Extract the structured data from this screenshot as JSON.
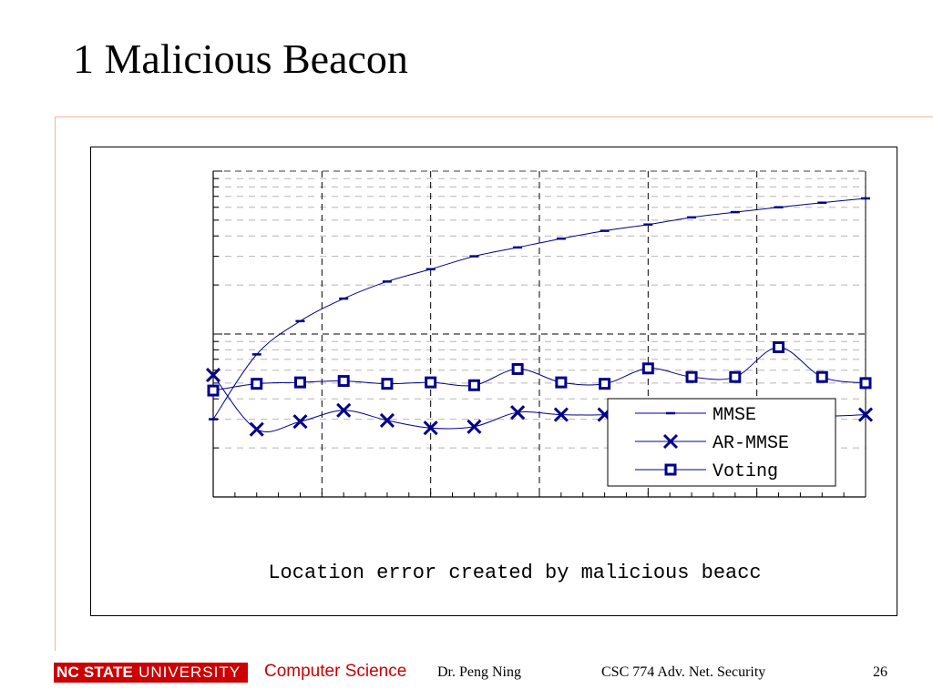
{
  "slide": {
    "title": "1 Malicious Beacon",
    "footer": {
      "logo_bold": "NC STATE",
      "logo_light": "UNIVERSITY",
      "department": "Computer Science",
      "author": "Dr. Peng Ning",
      "course": "CSC 774 Adv. Net. Security",
      "page": "26"
    },
    "colors": {
      "accent_line": "#f2b49a",
      "brand_red": "#cc0000",
      "series": "#00008b"
    }
  },
  "chart_data": {
    "type": "line",
    "title": "",
    "caption": "Location error created by malicious beacc",
    "xlabel": "",
    "ylabel": "",
    "y_scale": "log",
    "grid": true,
    "legend_position": "bottom-right",
    "x": [
      0,
      1,
      2,
      3,
      4,
      5,
      6,
      7,
      8,
      9,
      10,
      11,
      12,
      13,
      14,
      15
    ],
    "xlim": [
      0,
      15
    ],
    "ylim": [
      1,
      100
    ],
    "series": [
      {
        "name": "MMSE",
        "marker": "dash",
        "values": [
          3,
          7.5,
          12,
          16.5,
          21,
          25,
          30,
          34,
          38.5,
          43,
          47,
          52,
          56,
          60,
          64,
          68
        ]
      },
      {
        "name": "AR-MMSE",
        "marker": "x",
        "values": [
          5.6,
          2.6,
          2.9,
          3.4,
          2.95,
          2.65,
          2.7,
          3.3,
          3.2,
          3.2,
          3.4,
          3.3,
          3.35,
          3.5,
          3.15,
          3.2
        ]
      },
      {
        "name": "Voting",
        "marker": "square",
        "values": [
          4.5,
          4.95,
          5.05,
          5.15,
          4.95,
          5.05,
          4.85,
          6.1,
          5.05,
          4.95,
          6.15,
          5.45,
          5.45,
          8.3,
          5.45,
          5.0
        ]
      }
    ]
  }
}
